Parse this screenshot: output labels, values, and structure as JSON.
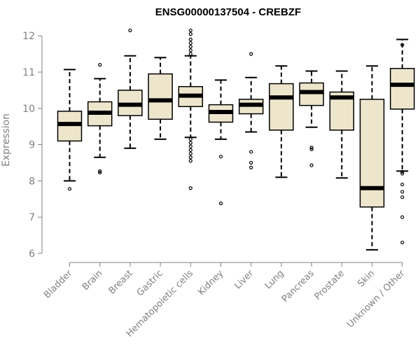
{
  "chart_data": {
    "type": "boxplot",
    "title": "ENSG00000137504 - CREBZF",
    "xlabel": "",
    "ylabel": "Expression",
    "ylim": [
      6,
      12.1
    ],
    "yticks": [
      6,
      7,
      8,
      9,
      10,
      11,
      12
    ],
    "grid": false,
    "box_fill": "#ede6cc",
    "categories": [
      "Bladder",
      "Brain",
      "Breast",
      "Gastric",
      "Hematopoietic cells",
      "Kidney",
      "Liver",
      "Lung",
      "Pancreas",
      "Prostate",
      "Skin",
      "Unknown / Other"
    ],
    "boxes": [
      {
        "whisker_low": 8.0,
        "q1": 9.1,
        "median": 9.57,
        "q3": 9.92,
        "whisker_high": 11.07,
        "outliers": [
          7.78
        ]
      },
      {
        "whisker_low": 8.65,
        "q1": 9.52,
        "median": 9.88,
        "q3": 10.18,
        "whisker_high": 10.82,
        "outliers": [
          8.23,
          8.27,
          11.2
        ]
      },
      {
        "whisker_low": 8.9,
        "q1": 9.8,
        "median": 10.1,
        "q3": 10.5,
        "whisker_high": 11.45,
        "outliers": [
          12.15
        ]
      },
      {
        "whisker_low": 9.15,
        "q1": 9.7,
        "median": 10.22,
        "q3": 10.95,
        "whisker_high": 11.4,
        "outliers": []
      },
      {
        "whisker_low": 9.2,
        "q1": 10.05,
        "median": 10.35,
        "q3": 10.6,
        "whisker_high": 11.45,
        "outliers": [
          7.8,
          8.55,
          8.65,
          8.75,
          8.85,
          8.95,
          9.05,
          9.15,
          11.5,
          11.6,
          11.7,
          11.8,
          11.9,
          12.05,
          12.15
        ]
      },
      {
        "whisker_low": 9.15,
        "q1": 9.62,
        "median": 9.9,
        "q3": 10.1,
        "whisker_high": 10.78,
        "outliers": [
          7.38,
          8.67
        ]
      },
      {
        "whisker_low": 9.35,
        "q1": 9.85,
        "median": 10.1,
        "q3": 10.25,
        "whisker_high": 10.85,
        "outliers": [
          8.37,
          8.5,
          8.8,
          11.5
        ]
      },
      {
        "whisker_low": 8.1,
        "q1": 9.4,
        "median": 10.3,
        "q3": 10.68,
        "whisker_high": 11.17,
        "outliers": []
      },
      {
        "whisker_low": 9.48,
        "q1": 10.08,
        "median": 10.45,
        "q3": 10.7,
        "whisker_high": 11.03,
        "outliers": [
          8.43,
          8.87,
          8.92
        ]
      },
      {
        "whisker_low": 8.08,
        "q1": 9.4,
        "median": 10.3,
        "q3": 10.45,
        "whisker_high": 11.03,
        "outliers": []
      },
      {
        "whisker_low": 6.1,
        "q1": 7.28,
        "median": 7.8,
        "q3": 10.25,
        "whisker_high": 11.17,
        "outliers": []
      },
      {
        "whisker_low": 8.27,
        "q1": 9.98,
        "median": 10.65,
        "q3": 11.1,
        "whisker_high": 11.9,
        "outliers": [
          6.3,
          7.0,
          7.55,
          7.7,
          7.9,
          8.2,
          8.25,
          11.75
        ]
      }
    ]
  }
}
